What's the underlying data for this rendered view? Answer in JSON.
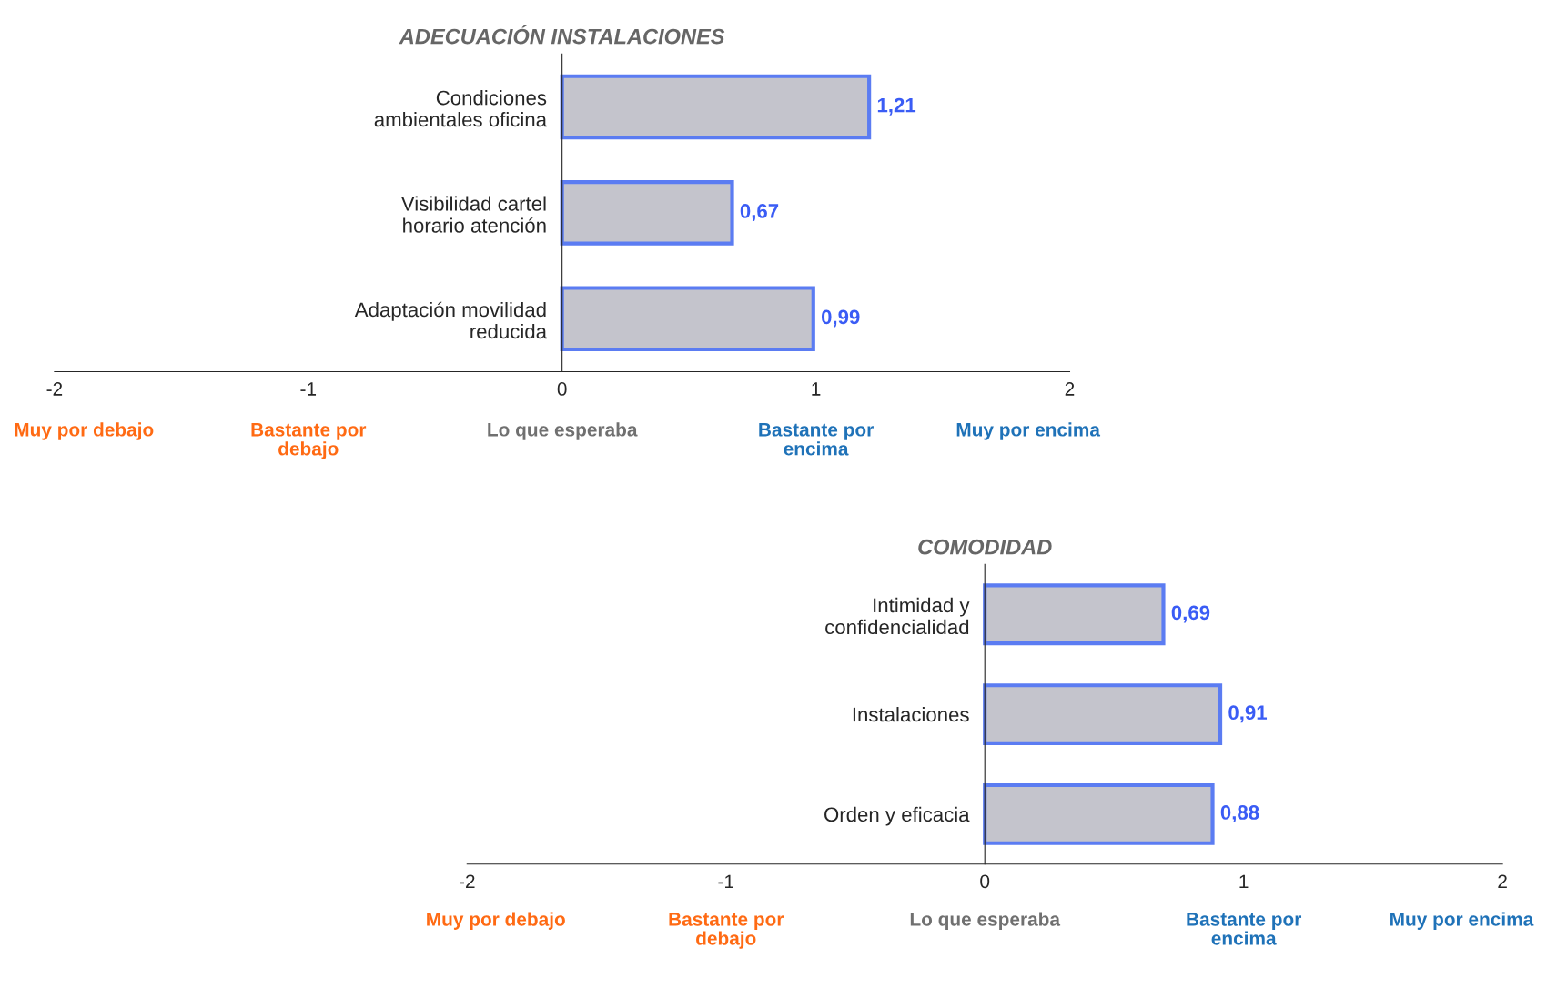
{
  "chart_data": [
    {
      "type": "bar",
      "orientation": "horizontal",
      "title": "ADECUACIÓN INSTALACIONES",
      "categories": [
        "Condiciones\nambientales oficina",
        "Visibilidad cartel\nhorario atención",
        "Adaptación movilidad\nreducida"
      ],
      "values": [
        1.21,
        0.67,
        0.99
      ],
      "value_labels": [
        "1,21",
        "0,67",
        "0,99"
      ],
      "color": "#5b7cf2",
      "xlim": [
        -2,
        2
      ],
      "xticks": [
        -2,
        -1,
        0,
        1,
        2
      ],
      "grid": false,
      "legend": false,
      "annotations": [
        "Muy por debajo",
        "Bastante por\ndebajo",
        "Lo que esperaba",
        "Bastante por\nencima",
        "Muy por encima"
      ]
    },
    {
      "type": "bar",
      "orientation": "horizontal",
      "title": "COMODIDAD",
      "categories": [
        "Intimidad y\nconfidencialidad",
        "Instalaciones",
        "Orden y eficacia"
      ],
      "values": [
        0.69,
        0.91,
        0.88
      ],
      "value_labels": [
        "0,69",
        "0,91",
        "0,88"
      ],
      "color": "#5b7cf2",
      "xlim": [
        -2,
        2
      ],
      "xticks": [
        -2,
        -1,
        0,
        1,
        2
      ],
      "grid": false,
      "legend": false,
      "annotations": [
        "Muy por debajo",
        "Bastante por\ndebajo",
        "Lo que esperaba",
        "Bastante por\nencima",
        "Muy por encima"
      ]
    }
  ]
}
